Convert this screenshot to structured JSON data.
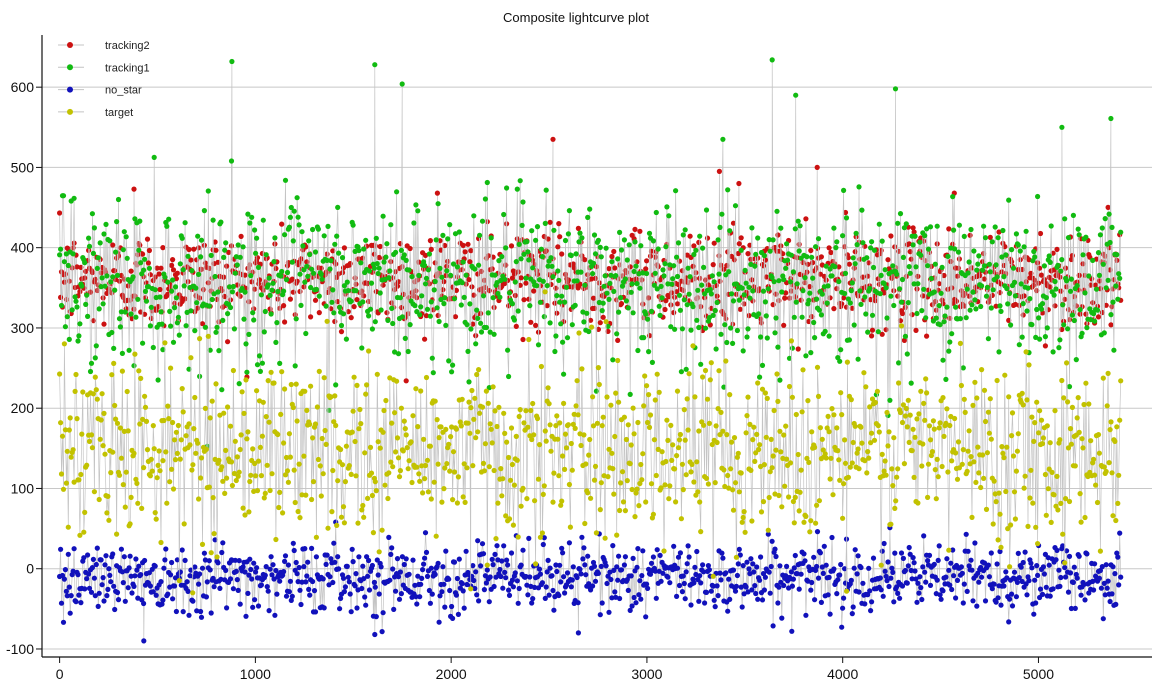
{
  "chart_data": {
    "type": "scatter",
    "title": "Composite lightcurve plot",
    "xlabel": "",
    "ylabel": "",
    "xlim": [
      -90,
      5580
    ],
    "ylim": [
      -110,
      665
    ],
    "x_ticks": [
      0,
      1000,
      2000,
      3000,
      4000,
      5000
    ],
    "y_ticks": [
      -100,
      0,
      100,
      200,
      300,
      400,
      500,
      600
    ],
    "grid": "horizontal",
    "legend_position": "top-left",
    "connecting_lines": true,
    "n_points_per_series": 5420,
    "series": [
      {
        "name": "tracking2",
        "color": "#cc1111",
        "x_range": [
          0,
          5420
        ],
        "typical_range": [
          300,
          420
        ],
        "approx_mean": 360,
        "notable_points": [
          [
            380,
            473
          ],
          [
            1930,
            468
          ],
          [
            2520,
            535
          ],
          [
            2650,
            424
          ],
          [
            3370,
            495
          ],
          [
            3470,
            480
          ],
          [
            3870,
            500
          ],
          [
            4570,
            468
          ]
        ]
      },
      {
        "name": "tracking1",
        "color": "#11bb11",
        "x_range": [
          0,
          5420
        ],
        "typical_range": [
          250,
          460
        ],
        "approx_mean": 355,
        "notable_points": [
          [
            880,
            632
          ],
          [
            1610,
            628
          ],
          [
            1750,
            604
          ],
          [
            3640,
            634
          ],
          [
            3760,
            590
          ],
          [
            4270,
            598
          ],
          [
            5120,
            550
          ],
          [
            5370,
            561
          ]
        ]
      },
      {
        "name": "no_star",
        "color": "#1111bb",
        "x_range": [
          0,
          5420
        ],
        "typical_range": [
          -55,
          30
        ],
        "approx_mean": -10,
        "notable_points": [
          [
            430,
            -90
          ],
          [
            2650,
            -80
          ],
          [
            1610,
            -82
          ],
          [
            3740,
            -78
          ]
        ]
      },
      {
        "name": "target",
        "color": "#c2c200",
        "x_range": [
          0,
          5420
        ],
        "typical_range": [
          40,
          260
        ],
        "approx_mean": 150,
        "notable_points": [
          [
            680,
            -30
          ],
          [
            2100,
            -25
          ],
          [
            4020,
            -28
          ],
          [
            2480,
            345
          ]
        ]
      }
    ]
  }
}
